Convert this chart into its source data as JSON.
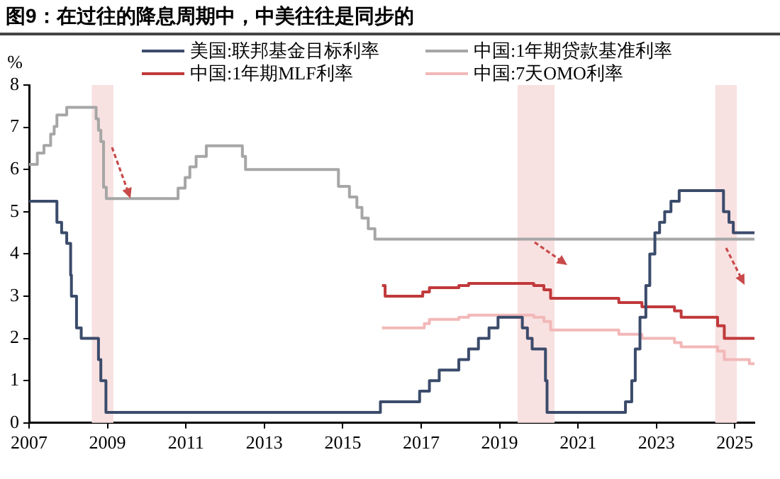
{
  "chart_data": {
    "type": "step",
    "title": "图9：在过往的降息周期中，中美往往是同步的",
    "ylabel": "%",
    "xlim": [
      2007,
      2025.5
    ],
    "xticks": [
      2007,
      2009,
      2011,
      2013,
      2015,
      2017,
      2019,
      2021,
      2023,
      2025
    ],
    "ylim": [
      0,
      8
    ],
    "yticks": [
      0,
      1,
      2,
      3,
      4,
      5,
      6,
      7,
      8
    ],
    "grid": false,
    "legend": "top",
    "line_style": "solid",
    "marker": "none",
    "series": [
      {
        "name": "美国:联邦基金目标利率",
        "color": "#3b4b6b",
        "x": [
          2007,
          2007.71,
          2007.83,
          2007.96,
          2008.06,
          2008.08,
          2008.21,
          2008.33,
          2008.77,
          2008.83,
          2008.96,
          2015.96,
          2016.96,
          2017.21,
          2017.46,
          2017.96,
          2018.21,
          2018.46,
          2018.73,
          2018.96,
          2019.58,
          2019.71,
          2019.83,
          2020.17,
          2020.21,
          2022.21,
          2022.37,
          2022.46,
          2022.58,
          2022.73,
          2022.83,
          2022.96,
          2023.08,
          2023.21,
          2023.37,
          2023.58,
          2024.71,
          2024.85,
          2024.96,
          2025.5
        ],
        "values": [
          5.25,
          4.75,
          4.5,
          4.25,
          3.5,
          3.0,
          2.25,
          2.0,
          1.5,
          1.0,
          0.25,
          0.5,
          0.75,
          1.0,
          1.25,
          1.5,
          1.75,
          2.0,
          2.25,
          2.5,
          2.25,
          2.0,
          1.75,
          1.0,
          0.25,
          0.5,
          1.0,
          1.75,
          2.5,
          3.25,
          4.0,
          4.5,
          4.75,
          5.0,
          5.25,
          5.5,
          5.0,
          4.75,
          4.5,
          4.5
        ]
      },
      {
        "name": "中国:1年期贷款基准利率",
        "color": "#a6a6a6",
        "x": [
          2007,
          2007.21,
          2007.38,
          2007.55,
          2007.64,
          2007.71,
          2007.96,
          2008.71,
          2008.77,
          2008.83,
          2008.9,
          2008.97,
          2010.8,
          2010.98,
          2011.1,
          2011.26,
          2011.52,
          2012.44,
          2012.52,
          2014.89,
          2015.17,
          2015.36,
          2015.49,
          2015.65,
          2015.82,
          2025.5
        ],
        "values": [
          6.12,
          6.39,
          6.57,
          6.84,
          7.02,
          7.29,
          7.47,
          7.2,
          6.93,
          6.66,
          5.58,
          5.31,
          5.56,
          5.81,
          6.06,
          6.31,
          6.56,
          6.31,
          6.0,
          5.6,
          5.35,
          5.1,
          4.85,
          4.6,
          4.35,
          4.35
        ]
      },
      {
        "name": "中国:1年期MLF利率",
        "color": "#c0393b",
        "x": [
          2016.0,
          2016.08,
          2017.04,
          2017.21,
          2017.96,
          2018.21,
          2019.87,
          2020.13,
          2020.3,
          2022.04,
          2022.63,
          2023.46,
          2023.63,
          2024.56,
          2024.73,
          2025.5
        ],
        "values": [
          3.25,
          3.0,
          3.1,
          3.2,
          3.25,
          3.3,
          3.25,
          3.15,
          2.95,
          2.85,
          2.75,
          2.65,
          2.5,
          2.3,
          2.0,
          2.0
        ]
      },
      {
        "name": "中国:7天OMO利率",
        "color": "#f2b8b8",
        "x": [
          2016.0,
          2017.08,
          2017.21,
          2017.96,
          2018.21,
          2019.87,
          2020.13,
          2020.3,
          2022.04,
          2022.63,
          2023.46,
          2023.63,
          2024.56,
          2024.73,
          2025.37,
          2025.5
        ],
        "values": [
          2.25,
          2.35,
          2.45,
          2.5,
          2.55,
          2.5,
          2.4,
          2.2,
          2.1,
          2.0,
          1.9,
          1.8,
          1.7,
          1.5,
          1.4,
          1.4
        ]
      }
    ],
    "bands": [
      {
        "axis": "x",
        "from": 2008.6,
        "to": 2009.15,
        "color": "#f8e1e1"
      },
      {
        "axis": "x",
        "from": 2019.46,
        "to": 2020.4,
        "color": "#f8e1e1"
      },
      {
        "axis": "x",
        "from": 2024.5,
        "to": 2025.05,
        "color": "#f8e1e1"
      }
    ]
  }
}
